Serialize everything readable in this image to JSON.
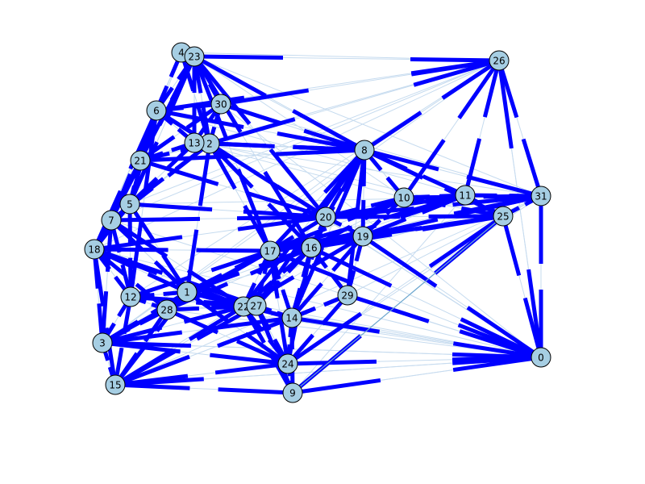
{
  "graph": {
    "node_fill": "#a6cee3",
    "node_stroke": "#000000",
    "thick_edge_color": "#0000ff",
    "thin_edge_color": "#c6dbef",
    "highlight_edge_color": "#6fa8cf",
    "nodes": [
      {
        "id": "0"
      },
      {
        "id": "1"
      },
      {
        "id": "2"
      },
      {
        "id": "3"
      },
      {
        "id": "4"
      },
      {
        "id": "5"
      },
      {
        "id": "6"
      },
      {
        "id": "7"
      },
      {
        "id": "8"
      },
      {
        "id": "9"
      },
      {
        "id": "10"
      },
      {
        "id": "11"
      },
      {
        "id": "12"
      },
      {
        "id": "13"
      },
      {
        "id": "14"
      },
      {
        "id": "15"
      },
      {
        "id": "16"
      },
      {
        "id": "17"
      },
      {
        "id": "18"
      },
      {
        "id": "19"
      },
      {
        "id": "20"
      },
      {
        "id": "21"
      },
      {
        "id": "22"
      },
      {
        "id": "23"
      },
      {
        "id": "24"
      },
      {
        "id": "25"
      },
      {
        "id": "26"
      },
      {
        "id": "27"
      },
      {
        "id": "28"
      },
      {
        "id": "29"
      },
      {
        "id": "30"
      },
      {
        "id": "31"
      }
    ],
    "edges": [
      [
        "26",
        "23"
      ],
      [
        "26",
        "8"
      ],
      [
        "26",
        "10"
      ],
      [
        "26",
        "11"
      ],
      [
        "26",
        "30"
      ],
      [
        "26",
        "2"
      ],
      [
        "26",
        "6"
      ],
      [
        "26",
        "31"
      ],
      [
        "26",
        "0"
      ],
      [
        "31",
        "8"
      ],
      [
        "31",
        "10"
      ],
      [
        "31",
        "11"
      ],
      [
        "31",
        "25"
      ],
      [
        "31",
        "19"
      ],
      [
        "31",
        "20"
      ],
      [
        "31",
        "16"
      ],
      [
        "31",
        "17"
      ],
      [
        "31",
        "0"
      ],
      [
        "0",
        "24"
      ],
      [
        "0",
        "9"
      ],
      [
        "0",
        "14"
      ],
      [
        "0",
        "29"
      ],
      [
        "0",
        "25"
      ],
      [
        "0",
        "19"
      ],
      [
        "0",
        "16"
      ],
      [
        "0",
        "17"
      ],
      [
        "0",
        "3"
      ],
      [
        "0",
        "15"
      ],
      [
        "23",
        "4"
      ],
      [
        "23",
        "6"
      ],
      [
        "23",
        "30"
      ],
      [
        "23",
        "13"
      ],
      [
        "23",
        "2"
      ],
      [
        "23",
        "21"
      ],
      [
        "23",
        "8"
      ],
      [
        "23",
        "20"
      ],
      [
        "23",
        "16"
      ],
      [
        "23",
        "17"
      ],
      [
        "23",
        "5"
      ],
      [
        "23",
        "7"
      ],
      [
        "6",
        "30"
      ],
      [
        "6",
        "13"
      ],
      [
        "6",
        "2"
      ],
      [
        "6",
        "21"
      ],
      [
        "6",
        "5"
      ],
      [
        "6",
        "7"
      ],
      [
        "6",
        "18"
      ],
      [
        "6",
        "12"
      ],
      [
        "6",
        "8"
      ],
      [
        "6",
        "20"
      ],
      [
        "2",
        "13"
      ],
      [
        "2",
        "30"
      ],
      [
        "2",
        "21"
      ],
      [
        "2",
        "8"
      ],
      [
        "2",
        "17"
      ],
      [
        "2",
        "16"
      ],
      [
        "2",
        "20"
      ],
      [
        "2",
        "1"
      ],
      [
        "2",
        "5"
      ],
      [
        "2",
        "7"
      ],
      [
        "8",
        "10"
      ],
      [
        "8",
        "11"
      ],
      [
        "8",
        "19"
      ],
      [
        "8",
        "20"
      ],
      [
        "8",
        "16"
      ],
      [
        "8",
        "17"
      ],
      [
        "8",
        "25"
      ],
      [
        "8",
        "14"
      ],
      [
        "8",
        "29"
      ],
      [
        "8",
        "21"
      ],
      [
        "8",
        "13"
      ],
      [
        "8",
        "22"
      ],
      [
        "8",
        "27"
      ],
      [
        "10",
        "11"
      ],
      [
        "10",
        "19"
      ],
      [
        "10",
        "20"
      ],
      [
        "10",
        "16"
      ],
      [
        "10",
        "25"
      ],
      [
        "10",
        "17"
      ],
      [
        "11",
        "25"
      ],
      [
        "11",
        "19"
      ],
      [
        "11",
        "20"
      ],
      [
        "11",
        "16"
      ],
      [
        "11",
        "17"
      ],
      [
        "25",
        "19"
      ],
      [
        "25",
        "20"
      ],
      [
        "25",
        "16"
      ],
      [
        "25",
        "17"
      ],
      [
        "25",
        "24"
      ],
      [
        "25",
        "9"
      ],
      [
        "20",
        "16"
      ],
      [
        "20",
        "17"
      ],
      [
        "20",
        "19"
      ],
      [
        "20",
        "5"
      ],
      [
        "20",
        "7"
      ],
      [
        "20",
        "18"
      ],
      [
        "20",
        "21"
      ],
      [
        "20",
        "14"
      ],
      [
        "19",
        "16"
      ],
      [
        "19",
        "17"
      ],
      [
        "19",
        "29"
      ],
      [
        "19",
        "14"
      ],
      [
        "19",
        "22"
      ],
      [
        "16",
        "17"
      ],
      [
        "16",
        "14"
      ],
      [
        "16",
        "29"
      ],
      [
        "16",
        "27"
      ],
      [
        "16",
        "22"
      ],
      [
        "16",
        "24"
      ],
      [
        "16",
        "1"
      ],
      [
        "16",
        "28"
      ],
      [
        "17",
        "1"
      ],
      [
        "17",
        "22"
      ],
      [
        "17",
        "27"
      ],
      [
        "17",
        "14"
      ],
      [
        "17",
        "24"
      ],
      [
        "17",
        "12"
      ],
      [
        "17",
        "18"
      ],
      [
        "17",
        "3"
      ],
      [
        "17",
        "28"
      ],
      [
        "18",
        "7"
      ],
      [
        "18",
        "5"
      ],
      [
        "18",
        "21"
      ],
      [
        "18",
        "12"
      ],
      [
        "18",
        "3"
      ],
      [
        "18",
        "15"
      ],
      [
        "18",
        "1"
      ],
      [
        "18",
        "28"
      ],
      [
        "18",
        "22"
      ],
      [
        "18",
        "27"
      ],
      [
        "7",
        "5"
      ],
      [
        "7",
        "21"
      ],
      [
        "7",
        "12"
      ],
      [
        "7",
        "3"
      ],
      [
        "7",
        "1"
      ],
      [
        "7",
        "22"
      ],
      [
        "5",
        "21"
      ],
      [
        "5",
        "13"
      ],
      [
        "5",
        "12"
      ],
      [
        "5",
        "1"
      ],
      [
        "21",
        "13"
      ],
      [
        "21",
        "30"
      ],
      [
        "12",
        "3"
      ],
      [
        "12",
        "15"
      ],
      [
        "12",
        "28"
      ],
      [
        "12",
        "1"
      ],
      [
        "12",
        "22"
      ],
      [
        "12",
        "27"
      ],
      [
        "3",
        "15"
      ],
      [
        "3",
        "28"
      ],
      [
        "3",
        "1"
      ],
      [
        "3",
        "22"
      ],
      [
        "3",
        "24"
      ],
      [
        "3",
        "14"
      ],
      [
        "15",
        "24"
      ],
      [
        "15",
        "9"
      ],
      [
        "15",
        "28"
      ],
      [
        "15",
        "1"
      ],
      [
        "15",
        "22"
      ],
      [
        "15",
        "27"
      ],
      [
        "15",
        "14"
      ],
      [
        "24",
        "9"
      ],
      [
        "24",
        "14"
      ],
      [
        "24",
        "22"
      ],
      [
        "24",
        "27"
      ],
      [
        "24",
        "28"
      ],
      [
        "24",
        "1"
      ],
      [
        "24",
        "29"
      ],
      [
        "9",
        "14"
      ],
      [
        "9",
        "22"
      ],
      [
        "9",
        "27"
      ],
      [
        "14",
        "22"
      ],
      [
        "14",
        "27"
      ],
      [
        "14",
        "29"
      ],
      [
        "14",
        "1"
      ],
      [
        "22",
        "27"
      ],
      [
        "22",
        "1"
      ],
      [
        "22",
        "28"
      ],
      [
        "28",
        "1"
      ],
      [
        "27",
        "1"
      ],
      [
        "29",
        "14"
      ],
      [
        "30",
        "13"
      ],
      [
        "30",
        "8"
      ],
      [
        "4",
        "6"
      ],
      [
        "4",
        "2"
      ],
      [
        "13",
        "8"
      ]
    ],
    "thin_edges": [
      [
        "4",
        "26"
      ],
      [
        "4",
        "8"
      ],
      [
        "23",
        "31"
      ],
      [
        "23",
        "10"
      ],
      [
        "6",
        "11"
      ],
      [
        "30",
        "31"
      ],
      [
        "2",
        "25"
      ],
      [
        "13",
        "10"
      ],
      [
        "18",
        "0"
      ],
      [
        "3",
        "0"
      ],
      [
        "15",
        "0"
      ],
      [
        "9",
        "0"
      ],
      [
        "9",
        "25"
      ],
      [
        "24",
        "31"
      ],
      [
        "15",
        "31"
      ],
      [
        "28",
        "0"
      ],
      [
        "12",
        "0"
      ],
      [
        "1",
        "31"
      ],
      [
        "21",
        "26"
      ],
      [
        "7",
        "26"
      ],
      [
        "5",
        "26"
      ],
      [
        "18",
        "26"
      ],
      [
        "3",
        "26"
      ],
      [
        "0",
        "26"
      ],
      [
        "29",
        "31"
      ],
      [
        "14",
        "0"
      ],
      [
        "22",
        "0"
      ],
      [
        "27",
        "0"
      ],
      [
        "4",
        "21"
      ],
      [
        "4",
        "18"
      ],
      [
        "9",
        "11"
      ],
      [
        "15",
        "10"
      ],
      [
        "3",
        "8"
      ],
      [
        "6",
        "0"
      ],
      [
        "2",
        "0"
      ],
      [
        "13",
        "31"
      ],
      [
        "30",
        "0"
      ],
      [
        "5",
        "31"
      ],
      [
        "7",
        "0"
      ],
      [
        "12",
        "26"
      ]
    ],
    "highlight_edges": [
      [
        "9",
        "25"
      ]
    ]
  }
}
